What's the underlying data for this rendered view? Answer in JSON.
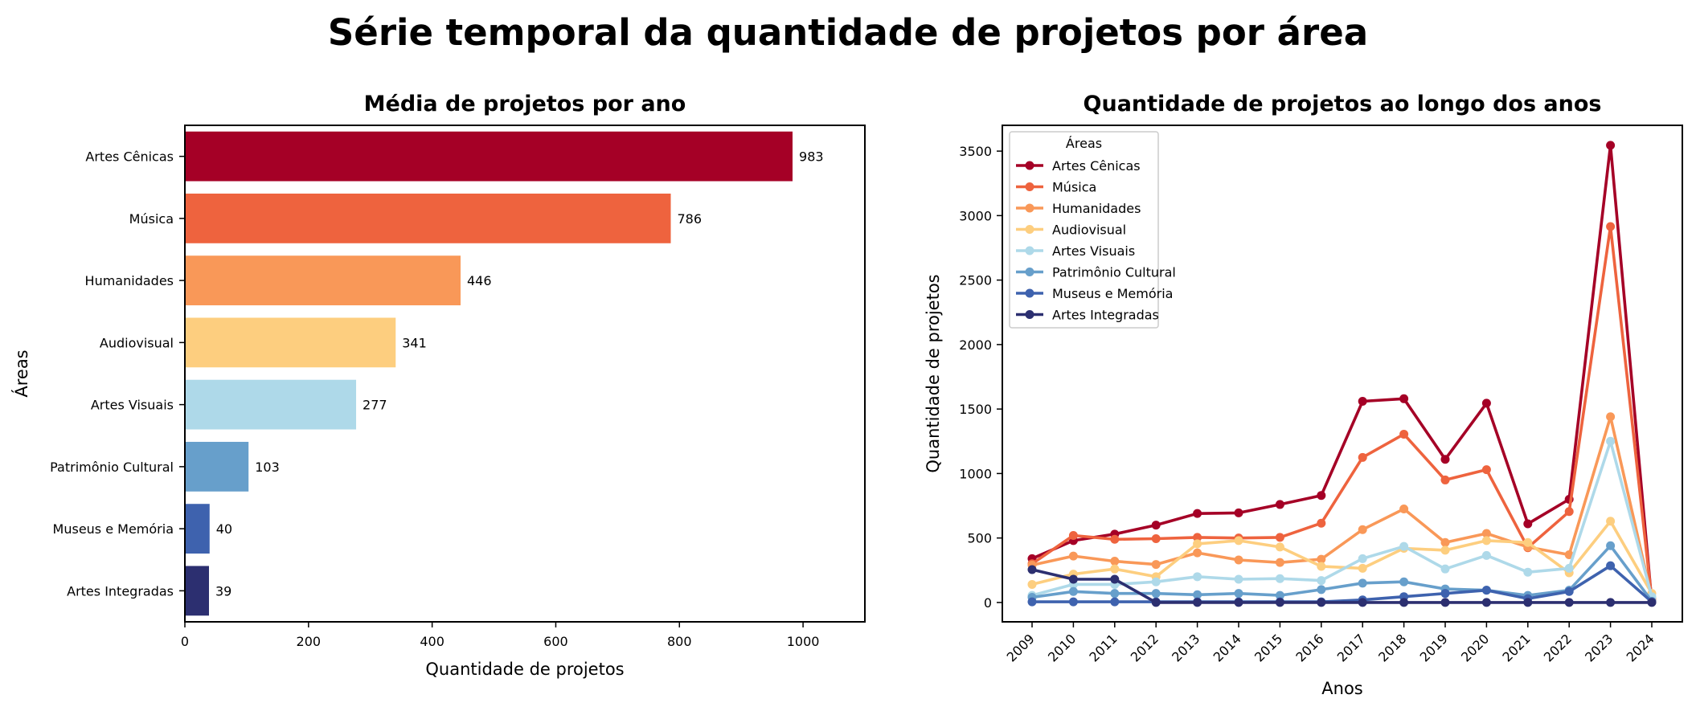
{
  "suptitle": "Série temporal da quantidade de projetos por área",
  "colors": {
    "Artes Cênicas": "#a50026",
    "Música": "#ee633e",
    "Humanidades": "#f99858",
    "Audiovisual": "#fdce7f",
    "Artes Visuais": "#aed9e9",
    "Patrimônio Cultural": "#679fcb",
    "Museus e Memória": "#3e62ae",
    "Artes Integradas": "#2c2f70"
  },
  "chart_data": [
    {
      "type": "bar",
      "orientation": "horizontal",
      "title": "Média de projetos por ano",
      "xlabel": "Quantidade de projetos",
      "ylabel": "Áreas",
      "xlim": [
        0,
        1100
      ],
      "xticks": [
        0,
        200,
        400,
        600,
        800,
        1000
      ],
      "categories": [
        "Artes Cênicas",
        "Música",
        "Humanidades",
        "Audiovisual",
        "Artes Visuais",
        "Patrimônio Cultural",
        "Museus e Memória",
        "Artes Integradas"
      ],
      "values": [
        983,
        786,
        446,
        341,
        277,
        103,
        40,
        39
      ],
      "data_labels": [
        "983",
        "786",
        "446",
        "341",
        "277",
        "103",
        "40",
        "39"
      ]
    },
    {
      "type": "line",
      "title": "Quantidade de projetos ao longo dos anos",
      "xlabel": "Anos",
      "ylabel": "Quantidade de projetos",
      "ylim": [
        -150,
        3700
      ],
      "yticks": [
        0,
        500,
        1000,
        1500,
        2000,
        2500,
        3000,
        3500
      ],
      "legend_title": "Áreas",
      "legend_position": "upper-left",
      "x": [
        "2009",
        "2010",
        "2011",
        "2012",
        "2013",
        "2014",
        "2015",
        "2016",
        "2017",
        "2018",
        "2019",
        "2020",
        "2021",
        "2022",
        "2023",
        "2024"
      ],
      "series": [
        {
          "name": "Artes Cênicas",
          "values": [
            340,
            480,
            530,
            600,
            690,
            695,
            760,
            830,
            1560,
            1580,
            1110,
            1545,
            610,
            800,
            3545,
            5
          ]
        },
        {
          "name": "Música",
          "values": [
            300,
            520,
            490,
            495,
            505,
            500,
            505,
            615,
            1125,
            1305,
            950,
            1030,
            425,
            705,
            2915,
            20
          ]
        },
        {
          "name": "Humanidades",
          "values": [
            290,
            360,
            320,
            295,
            385,
            330,
            310,
            335,
            565,
            725,
            465,
            535,
            430,
            370,
            1440,
            35
          ]
        },
        {
          "name": "Audiovisual",
          "values": [
            140,
            220,
            260,
            200,
            455,
            480,
            430,
            280,
            265,
            420,
            405,
            480,
            465,
            230,
            630,
            70
          ]
        },
        {
          "name": "Artes Visuais",
          "values": [
            55,
            140,
            140,
            160,
            200,
            180,
            185,
            170,
            340,
            435,
            260,
            365,
            235,
            265,
            1250,
            45
          ]
        },
        {
          "name": "Patrimônio Cultural",
          "values": [
            40,
            85,
            70,
            70,
            60,
            70,
            55,
            100,
            150,
            160,
            105,
            95,
            55,
            95,
            440,
            10
          ]
        },
        {
          "name": "Museus e Memória",
          "values": [
            5,
            5,
            5,
            5,
            5,
            5,
            5,
            5,
            20,
            45,
            70,
            95,
            30,
            85,
            285,
            5
          ]
        },
        {
          "name": "Artes Integradas",
          "values": [
            255,
            180,
            180,
            0,
            0,
            0,
            0,
            0,
            0,
            0,
            0,
            0,
            0,
            0,
            0,
            0
          ]
        }
      ]
    }
  ]
}
